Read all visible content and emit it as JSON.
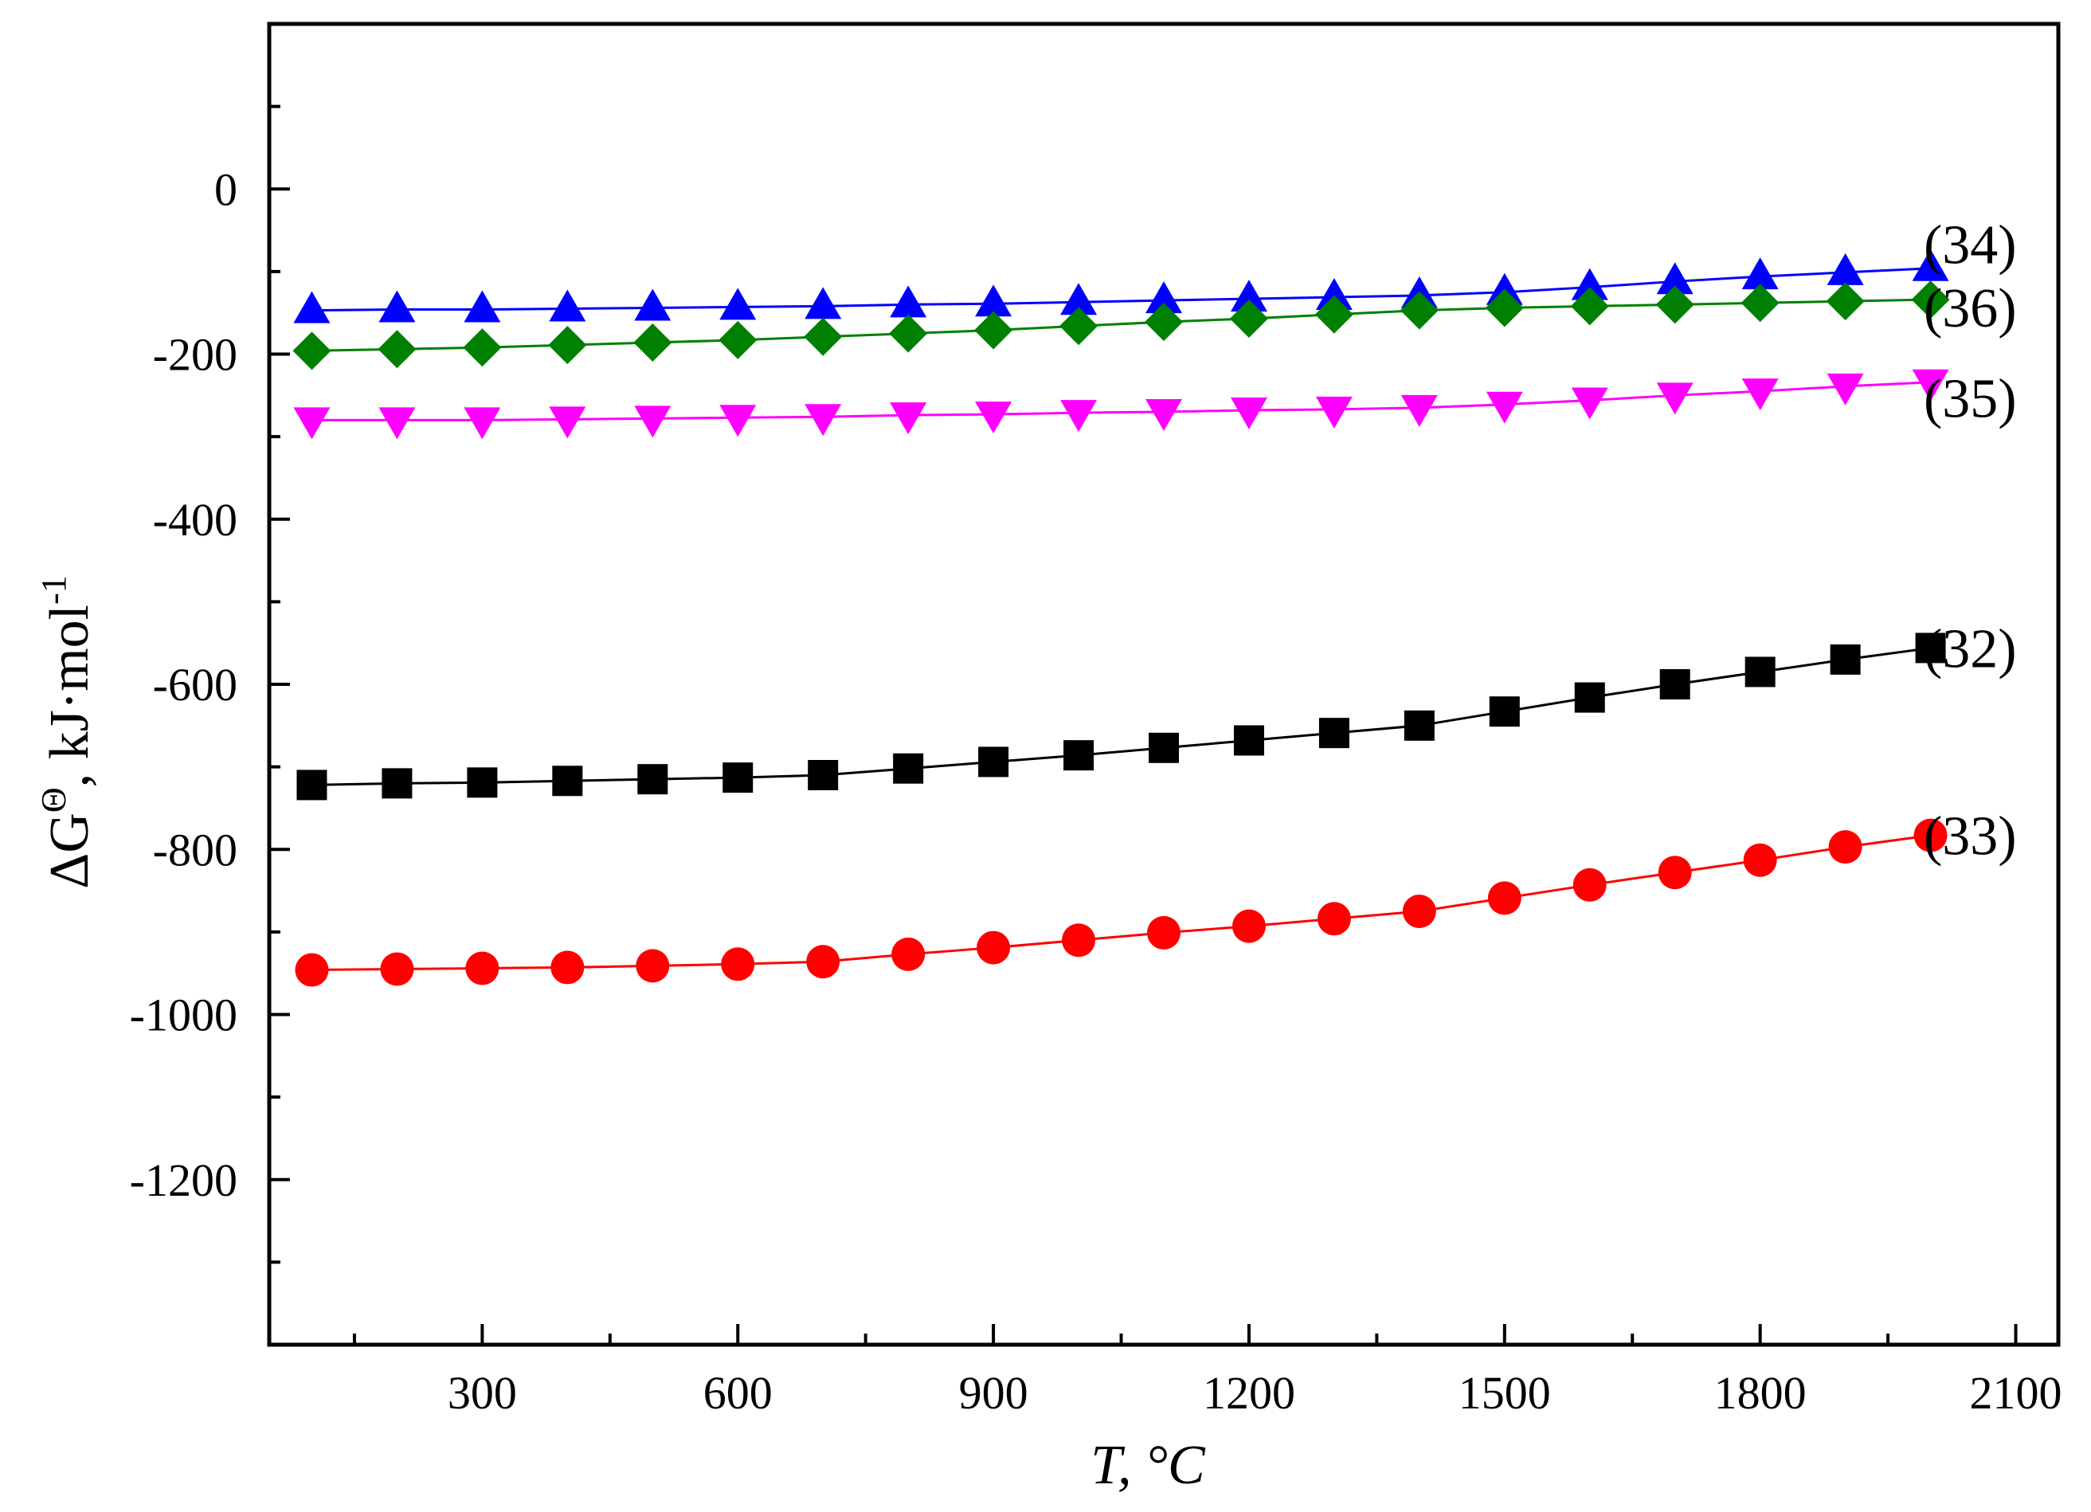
{
  "chart_data": {
    "type": "line",
    "title": "",
    "xlabel": {
      "var": "T",
      "rest": ", °C"
    },
    "ylabel": {
      "delta": "Δ",
      "main": "G",
      "sup": "Θ",
      "mid": ", kJ·mol",
      "sup2": "-1"
    },
    "xlim": [
      50,
      2150
    ],
    "ylim": [
      -1400,
      200
    ],
    "x_major_ticks": [
      300,
      600,
      900,
      1200,
      1500,
      1800,
      2100
    ],
    "x_minor_ticks": [
      150,
      450,
      750,
      1050,
      1350,
      1650,
      1950
    ],
    "x_tick_labels": [
      "300",
      "600",
      "900",
      "1200",
      "1500",
      "1800",
      "2100"
    ],
    "y_major_ticks": [
      0,
      -200,
      -400,
      -600,
      -800,
      -1000,
      -1200
    ],
    "y_minor_ticks": [
      100,
      -100,
      -300,
      -500,
      -700,
      -900,
      -1100,
      -1300
    ],
    "y_tick_labels": [
      "0",
      "-200",
      "-400",
      "-600",
      "-800",
      "-1000",
      "-1200"
    ],
    "grid": false,
    "x": [
      100,
      200,
      300,
      400,
      500,
      600,
      700,
      800,
      900,
      1000,
      1100,
      1200,
      1300,
      1400,
      1500,
      1600,
      1700,
      1800,
      1900,
      2000
    ],
    "series": [
      {
        "name": "(34)",
        "color": "#0000ff",
        "marker": "triangle-up",
        "values": [
          -147,
          -146,
          -146,
          -145,
          -144,
          -143,
          -142,
          -140,
          -139,
          -137,
          -135,
          -133,
          -131,
          -129,
          -125,
          -119,
          -112,
          -106,
          -101,
          -96
        ]
      },
      {
        "name": "(36)",
        "color": "#008000",
        "marker": "diamond",
        "values": [
          -196,
          -194,
          -192,
          -189,
          -186,
          -183,
          -179,
          -175,
          -171,
          -166,
          -161,
          -157,
          -152,
          -147,
          -144,
          -142,
          -140,
          -138,
          -136,
          -134
        ]
      },
      {
        "name": "(35)",
        "color": "#ff00ff",
        "marker": "triangle-down",
        "values": [
          -280,
          -280,
          -280,
          -279,
          -278,
          -277,
          -276,
          -274,
          -273,
          -271,
          -270,
          -268,
          -267,
          -265,
          -261,
          -256,
          -250,
          -245,
          -239,
          -234
        ]
      },
      {
        "name": "(32)",
        "color": "#000000",
        "marker": "square",
        "values": [
          -722,
          -720,
          -719,
          -717,
          -715,
          -713,
          -710,
          -702,
          -694,
          -686,
          -677,
          -668,
          -659,
          -650,
          -633,
          -616,
          -600,
          -585,
          -570,
          -556
        ]
      },
      {
        "name": "(33)",
        "color": "#ff0000",
        "marker": "circle",
        "values": [
          -946,
          -945,
          -944,
          -943,
          -941,
          -939,
          -936,
          -927,
          -919,
          -910,
          -901,
          -893,
          -884,
          -875,
          -859,
          -843,
          -828,
          -813,
          -797,
          -783
        ]
      }
    ]
  }
}
